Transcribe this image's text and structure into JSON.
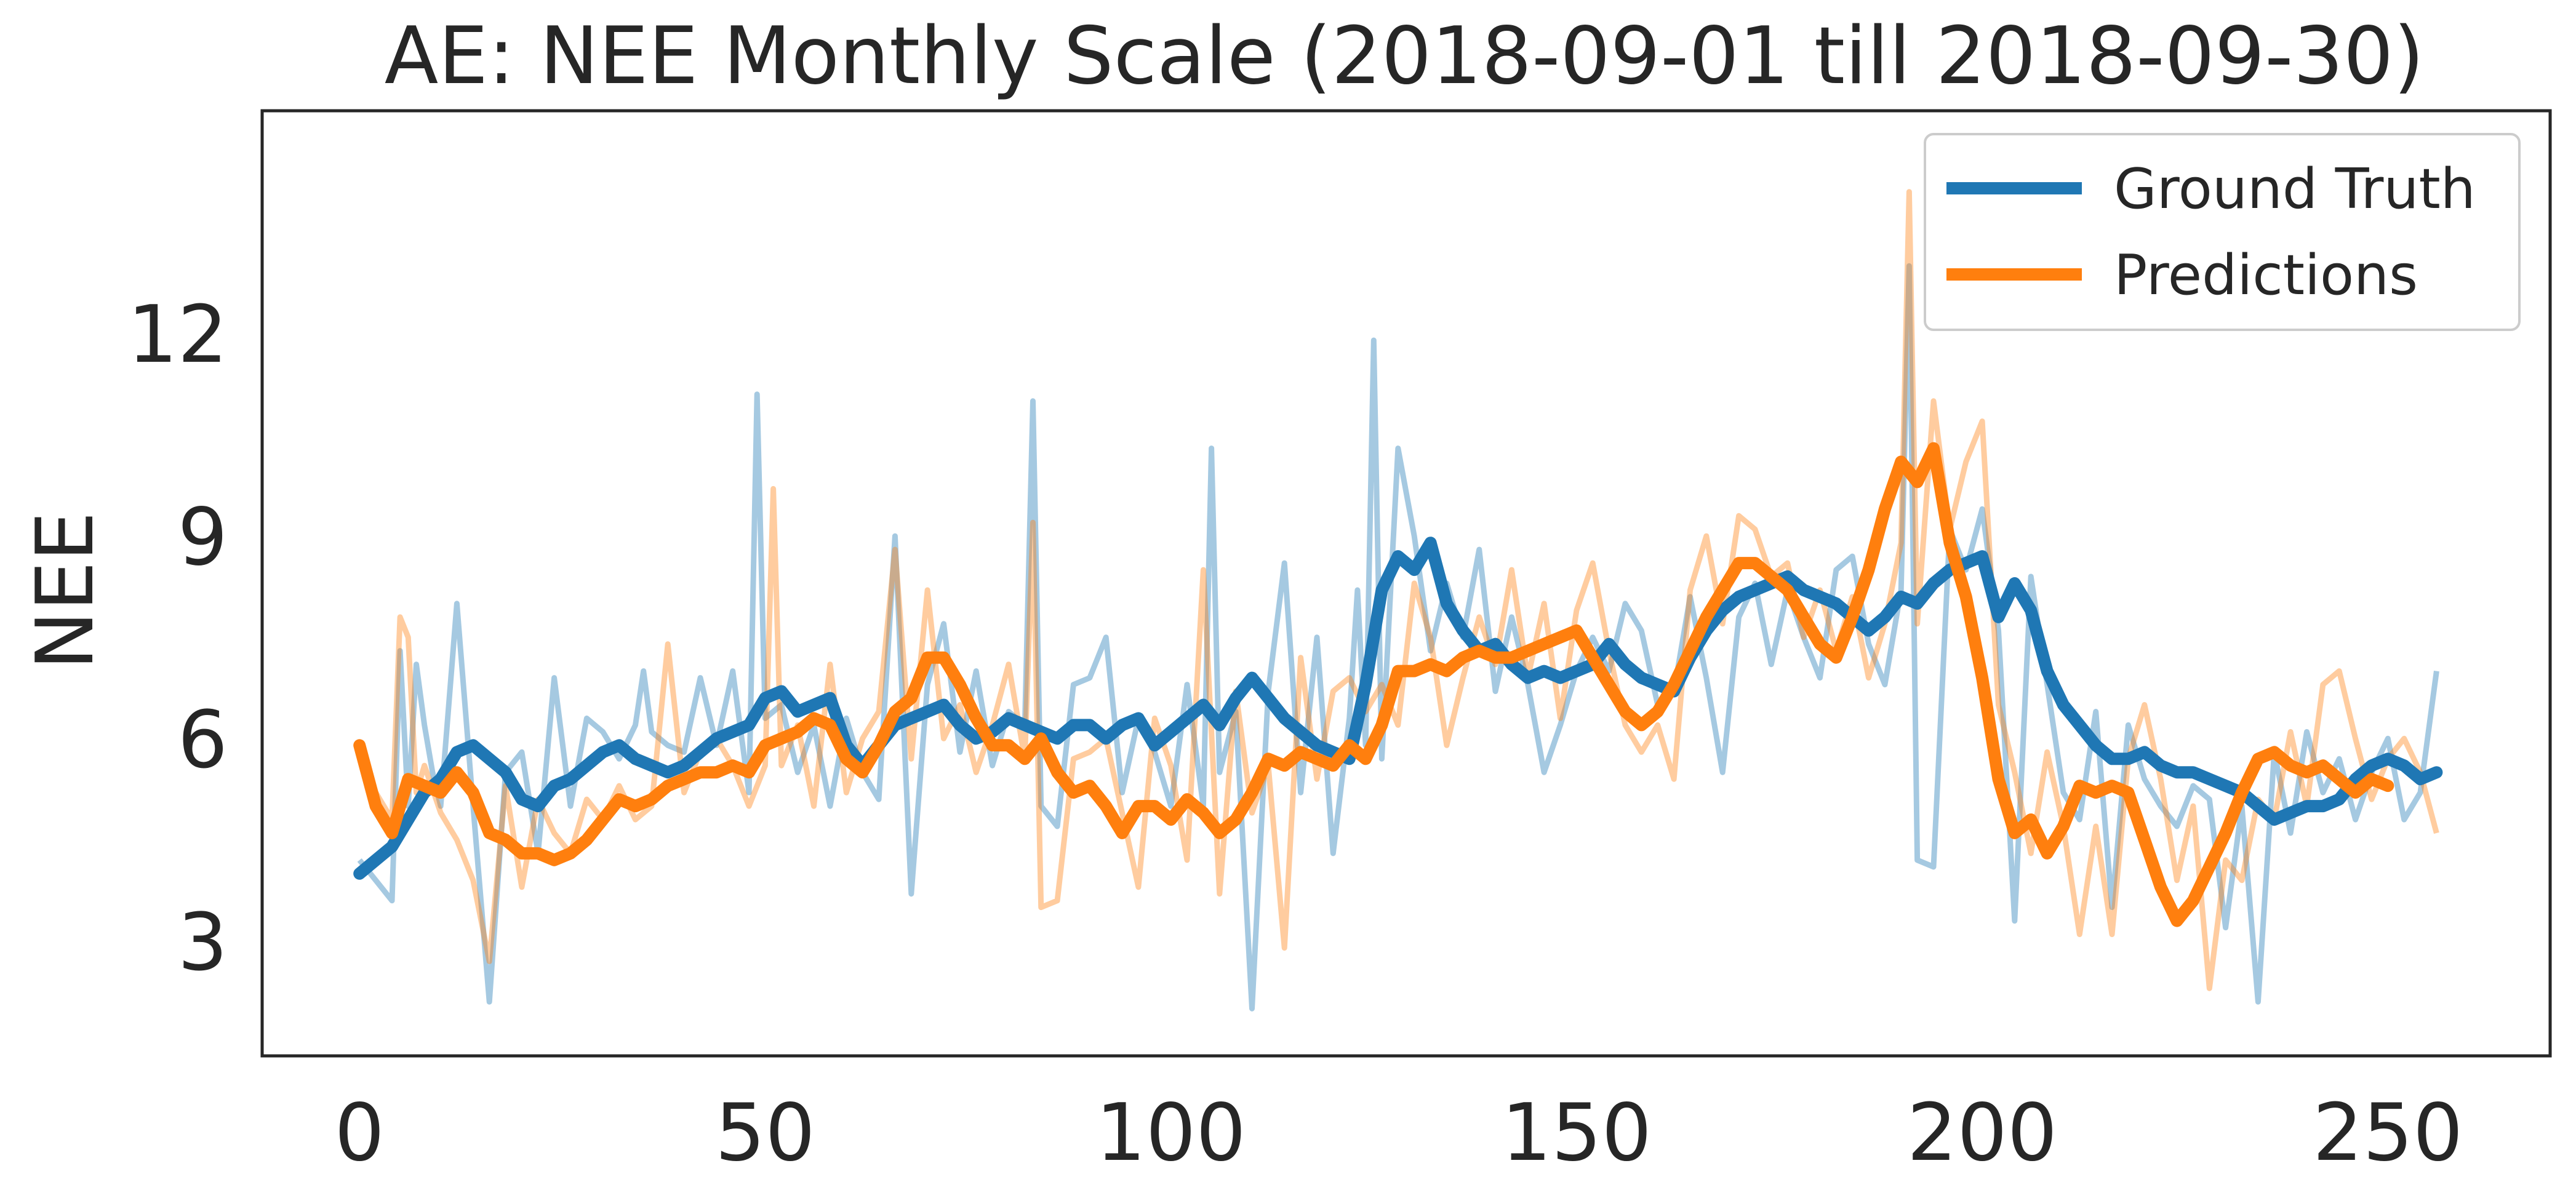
{
  "chart_data": {
    "type": "line",
    "title": "AE: NEE Monthly Scale (2018-09-01 till 2018-09-30)",
    "xlabel": "",
    "ylabel": "NEE",
    "xlim": [
      -12,
      270
    ],
    "ylim": [
      1.3,
      15.3
    ],
    "xticks": [
      0,
      50,
      100,
      150,
      200,
      250
    ],
    "yticks": [
      3,
      6,
      9,
      12
    ],
    "grid": false,
    "legend_position": "top-right",
    "colors": {
      "ground_truth": "#1f77b4",
      "predictions": "#ff7f0e",
      "frame": "#262626"
    },
    "series": [
      {
        "name": "Ground Truth",
        "color": "#1f77b4",
        "raw_x": [
          0,
          2,
          4,
          5,
          6,
          7,
          8,
          9,
          10,
          12,
          14,
          16,
          18,
          20,
          22,
          24,
          26,
          28,
          30,
          32,
          34,
          35,
          36,
          38,
          40,
          42,
          44,
          46,
          48,
          49,
          50,
          52,
          54,
          56,
          58,
          60,
          62,
          64,
          66,
          68,
          70,
          72,
          74,
          76,
          78,
          80,
          82,
          83,
          84,
          86,
          88,
          90,
          92,
          94,
          96,
          98,
          100,
          102,
          104,
          105,
          106,
          108,
          110,
          112,
          114,
          116,
          118,
          120,
          122,
          123,
          124,
          125,
          126,
          128,
          130,
          132,
          134,
          136,
          138,
          140,
          142,
          144,
          146,
          148,
          150,
          152,
          154,
          156,
          158,
          160,
          162,
          164,
          166,
          168,
          170,
          172,
          174,
          176,
          178,
          180,
          182,
          184,
          186,
          188,
          190,
          191,
          192,
          194,
          196,
          198,
          200,
          202,
          204,
          206,
          208,
          210,
          212,
          214,
          216,
          218,
          220,
          222,
          224,
          226,
          228,
          230,
          232,
          234,
          236,
          238,
          240,
          242,
          244,
          246,
          248,
          250,
          252,
          254,
          256
        ],
        "raw_y": [
          4.2,
          3.9,
          3.6,
          7.3,
          5.0,
          7.1,
          6.2,
          5.5,
          5.0,
          8.0,
          5.0,
          2.1,
          5.5,
          5.8,
          4.3,
          6.9,
          5.0,
          6.3,
          6.1,
          5.7,
          6.2,
          7.0,
          6.1,
          5.9,
          5.8,
          6.9,
          5.9,
          7.0,
          5.2,
          11.1,
          6.3,
          6.5,
          5.5,
          6.2,
          5.0,
          6.3,
          5.5,
          5.1,
          9.0,
          3.7,
          6.8,
          7.7,
          5.8,
          7.0,
          5.6,
          6.4,
          6.2,
          11.0,
          5.0,
          4.7,
          6.8,
          6.9,
          7.5,
          5.2,
          6.3,
          5.8,
          5.0,
          6.8,
          5.0,
          10.3,
          5.5,
          6.4,
          2.0,
          6.7,
          8.6,
          5.2,
          7.5,
          4.3,
          6.3,
          8.2,
          5.9,
          11.9,
          5.7,
          10.3,
          9.0,
          7.3,
          8.3,
          7.5,
          8.8,
          6.7,
          7.8,
          6.8,
          5.5,
          6.2,
          7.0,
          7.5,
          7.0,
          8.0,
          7.6,
          6.5,
          6.7,
          8.1,
          6.9,
          5.5,
          7.8,
          8.3,
          7.1,
          8.2,
          7.5,
          6.9,
          8.5,
          8.7,
          7.4,
          6.8,
          8.2,
          13.0,
          4.2,
          4.1,
          9.1,
          8.5,
          9.4,
          7.6,
          3.3,
          8.4,
          6.8,
          5.2,
          4.8,
          6.4,
          3.5,
          6.2,
          5.4,
          5.0,
          4.7,
          5.3,
          5.1,
          3.2,
          5.0,
          2.1,
          5.8,
          4.6,
          6.1,
          5.2,
          5.7,
          4.8,
          5.5,
          6.0,
          4.8,
          5.2,
          7.0
        ],
        "smooth_x": [
          0,
          2,
          4,
          6,
          8,
          10,
          12,
          14,
          16,
          18,
          20,
          22,
          24,
          26,
          28,
          30,
          32,
          34,
          36,
          38,
          40,
          42,
          44,
          46,
          48,
          50,
          52,
          54,
          56,
          58,
          60,
          62,
          64,
          66,
          68,
          70,
          72,
          74,
          76,
          78,
          80,
          82,
          84,
          86,
          88,
          90,
          92,
          94,
          96,
          98,
          100,
          102,
          104,
          106,
          108,
          110,
          112,
          114,
          116,
          118,
          120,
          122,
          124,
          126,
          128,
          130,
          132,
          134,
          136,
          138,
          140,
          142,
          144,
          146,
          148,
          150,
          152,
          154,
          156,
          158,
          160,
          162,
          164,
          166,
          168,
          170,
          172,
          174,
          176,
          178,
          180,
          182,
          184,
          186,
          188,
          190,
          192,
          194,
          196,
          198,
          200,
          202,
          204,
          206,
          208,
          210,
          212,
          214,
          216,
          218,
          220,
          222,
          224,
          226,
          228,
          230,
          232,
          234,
          236,
          238,
          240,
          242,
          244,
          246,
          248,
          250,
          252,
          254,
          256
        ],
        "smooth_y": [
          4.0,
          4.2,
          4.4,
          4.8,
          5.2,
          5.4,
          5.8,
          5.9,
          5.7,
          5.5,
          5.1,
          5.0,
          5.3,
          5.4,
          5.6,
          5.8,
          5.9,
          5.7,
          5.6,
          5.5,
          5.6,
          5.8,
          6.0,
          6.1,
          6.2,
          6.6,
          6.7,
          6.4,
          6.5,
          6.6,
          5.9,
          5.6,
          5.9,
          6.2,
          6.3,
          6.4,
          6.5,
          6.2,
          6.0,
          6.1,
          6.3,
          6.2,
          6.1,
          6.0,
          6.2,
          6.2,
          6.0,
          6.2,
          6.3,
          5.9,
          6.1,
          6.3,
          6.5,
          6.2,
          6.6,
          6.9,
          6.6,
          6.3,
          6.1,
          5.9,
          5.8,
          5.7,
          6.8,
          8.2,
          8.7,
          8.5,
          8.9,
          8.0,
          7.6,
          7.3,
          7.4,
          7.1,
          6.9,
          7.0,
          6.9,
          7.0,
          7.1,
          7.4,
          7.1,
          6.9,
          6.8,
          6.7,
          7.2,
          7.6,
          7.9,
          8.1,
          8.2,
          8.3,
          8.4,
          8.2,
          8.1,
          8.0,
          7.8,
          7.6,
          7.8,
          8.1,
          8.0,
          8.3,
          8.5,
          8.6,
          8.7,
          7.8,
          8.3,
          7.9,
          7.0,
          6.5,
          6.2,
          5.9,
          5.7,
          5.7,
          5.8,
          5.6,
          5.5,
          5.5,
          5.4,
          5.3,
          5.2,
          5.0,
          4.8,
          4.9,
          5.0,
          5.0,
          5.1,
          5.4,
          5.6,
          5.7,
          5.6,
          5.4,
          5.5,
          5.7,
          5.9
        ]
      },
      {
        "name": "Predictions",
        "color": "#ff7f0e",
        "raw_x": [
          0,
          2,
          4,
          5,
          6,
          7,
          8,
          10,
          12,
          14,
          16,
          18,
          20,
          22,
          24,
          26,
          28,
          30,
          32,
          34,
          36,
          38,
          40,
          42,
          44,
          46,
          48,
          50,
          51,
          52,
          54,
          56,
          58,
          60,
          62,
          64,
          66,
          68,
          70,
          72,
          74,
          76,
          78,
          80,
          82,
          83,
          84,
          86,
          88,
          90,
          92,
          94,
          96,
          98,
          100,
          102,
          104,
          106,
          108,
          110,
          112,
          114,
          116,
          118,
          120,
          122,
          124,
          126,
          128,
          130,
          132,
          134,
          136,
          138,
          140,
          142,
          144,
          146,
          148,
          150,
          152,
          154,
          156,
          158,
          160,
          162,
          164,
          166,
          168,
          170,
          172,
          174,
          176,
          178,
          180,
          182,
          184,
          186,
          188,
          190,
          191,
          192,
          194,
          196,
          198,
          200,
          202,
          204,
          206,
          208,
          210,
          212,
          214,
          216,
          218,
          220,
          222,
          224,
          226,
          228,
          230,
          232,
          234,
          236,
          238,
          240,
          242,
          244,
          246,
          248,
          250,
          252,
          254,
          256
        ],
        "raw_y": [
          5.8,
          5.2,
          4.8,
          7.8,
          7.5,
          5.2,
          5.6,
          4.9,
          4.5,
          3.9,
          2.7,
          5.3,
          3.8,
          5.1,
          4.6,
          4.3,
          5.1,
          4.8,
          5.3,
          4.8,
          5.0,
          7.4,
          5.2,
          5.8,
          6.0,
          5.6,
          5.0,
          5.6,
          9.7,
          5.6,
          6.2,
          5.0,
          7.1,
          5.2,
          6.0,
          6.4,
          8.8,
          5.7,
          8.2,
          6.0,
          6.5,
          5.5,
          6.2,
          7.1,
          5.7,
          9.2,
          3.5,
          3.6,
          5.7,
          5.8,
          6.0,
          4.9,
          3.8,
          6.3,
          5.6,
          4.2,
          8.5,
          3.7,
          6.7,
          4.9,
          5.6,
          2.9,
          7.2,
          5.4,
          6.7,
          6.9,
          6.4,
          6.8,
          6.2,
          8.3,
          7.5,
          5.9,
          6.9,
          7.8,
          7.1,
          8.5,
          6.9,
          8.0,
          6.3,
          7.9,
          8.6,
          7.3,
          6.2,
          5.8,
          6.2,
          5.4,
          8.2,
          9.0,
          7.7,
          9.3,
          9.1,
          8.4,
          8.6,
          7.5,
          8.2,
          7.3,
          8.1,
          6.9,
          7.7,
          8.9,
          14.1,
          7.7,
          11.0,
          9.1,
          10.1,
          10.7,
          6.5,
          5.5,
          4.3,
          5.8,
          4.7,
          3.1,
          4.7,
          3.1,
          5.7,
          6.5,
          5.4,
          3.9,
          5.0,
          2.3,
          4.2,
          3.9,
          5.1,
          4.8,
          6.1,
          5.0,
          6.8,
          7.0,
          6.0,
          5.1,
          5.7,
          6.0,
          5.5,
          4.6,
          7.9,
          4.2
        ],
        "smooth_x": [
          0,
          2,
          4,
          6,
          8,
          10,
          12,
          14,
          16,
          18,
          20,
          22,
          24,
          26,
          28,
          30,
          32,
          34,
          36,
          38,
          40,
          42,
          44,
          46,
          48,
          50,
          52,
          54,
          56,
          58,
          60,
          62,
          64,
          66,
          68,
          70,
          72,
          74,
          76,
          78,
          80,
          82,
          84,
          86,
          88,
          90,
          92,
          94,
          96,
          98,
          100,
          102,
          104,
          106,
          108,
          110,
          112,
          114,
          116,
          118,
          120,
          122,
          124,
          126,
          128,
          130,
          132,
          134,
          136,
          138,
          140,
          142,
          144,
          146,
          148,
          150,
          152,
          154,
          156,
          158,
          160,
          162,
          164,
          166,
          168,
          170,
          172,
          174,
          176,
          178,
          180,
          182,
          184,
          186,
          188,
          190,
          192,
          194,
          196,
          198,
          200,
          202,
          204,
          206,
          208,
          210,
          212,
          214,
          216,
          218,
          220,
          222,
          224,
          226,
          228,
          230,
          232,
          234,
          236,
          238,
          240,
          242,
          244,
          246,
          248,
          250,
          252,
          254,
          256
        ],
        "smooth_y": [
          5.9,
          5.0,
          4.6,
          5.4,
          5.3,
          5.2,
          5.5,
          5.2,
          4.6,
          4.5,
          4.3,
          4.3,
          4.2,
          4.3,
          4.5,
          4.8,
          5.1,
          5.0,
          5.1,
          5.3,
          5.4,
          5.5,
          5.5,
          5.6,
          5.5,
          5.9,
          6.0,
          6.1,
          6.3,
          6.2,
          5.7,
          5.5,
          5.9,
          6.4,
          6.6,
          7.2,
          7.2,
          6.8,
          6.3,
          5.9,
          5.9,
          5.7,
          6.0,
          5.5,
          5.2,
          5.3,
          5.0,
          4.6,
          5.0,
          5.0,
          4.8,
          5.1,
          4.9,
          4.6,
          4.8,
          5.2,
          5.7,
          5.6,
          5.8,
          5.7,
          5.6,
          5.9,
          5.7,
          6.2,
          7.0,
          7.0,
          7.1,
          7.0,
          7.2,
          7.3,
          7.2,
          7.2,
          7.3,
          7.4,
          7.5,
          7.6,
          7.2,
          6.8,
          6.4,
          6.2,
          6.4,
          6.8,
          7.3,
          7.8,
          8.2,
          8.6,
          8.6,
          8.4,
          8.2,
          7.8,
          7.4,
          7.2,
          7.8,
          8.5,
          9.4,
          10.1,
          9.8,
          10.3,
          8.9,
          8.1,
          6.9,
          5.4,
          4.6,
          4.8,
          4.3,
          4.7,
          5.3,
          5.2,
          5.3,
          5.2,
          4.5,
          3.8,
          3.3,
          3.6,
          4.1,
          4.6,
          5.2,
          5.7,
          5.8,
          5.6,
          5.5,
          5.6,
          5.4,
          5.2,
          5.4,
          5.3
        ]
      }
    ]
  }
}
